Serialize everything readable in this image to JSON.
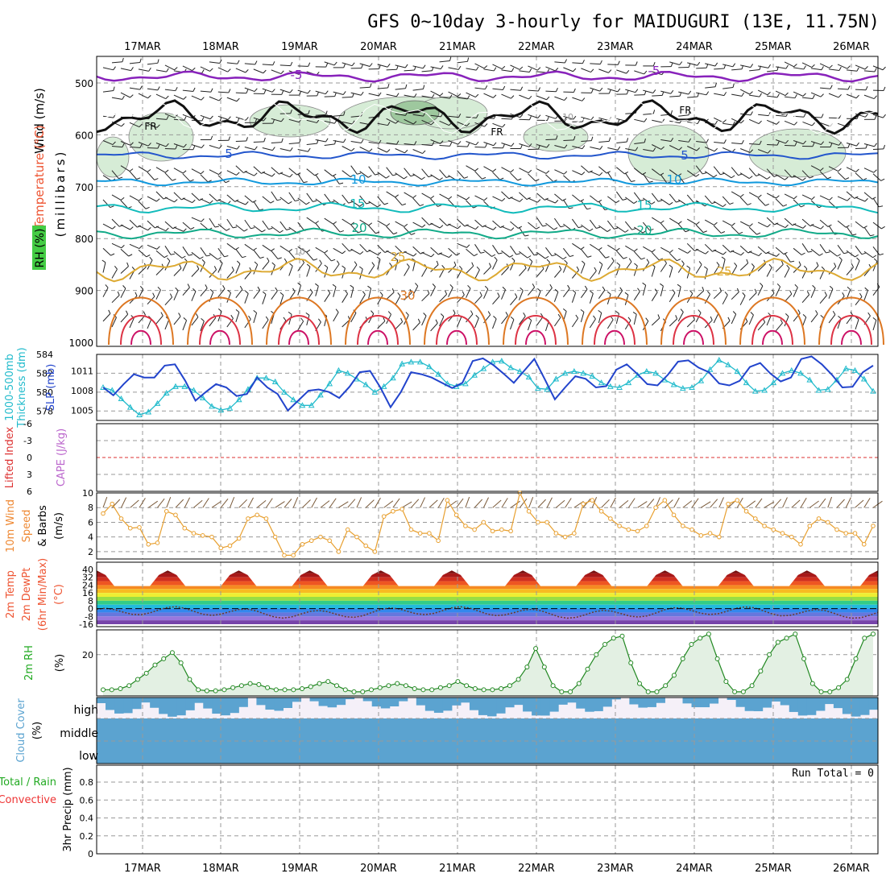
{
  "title": "GFS 0~10day 3-hourly for MAIDUGURI (13E, 11.75N)",
  "run_total": "Run Total = 0",
  "dates": [
    "17MAR",
    "18MAR",
    "19MAR",
    "20MAR",
    "21MAR",
    "22MAR",
    "23MAR",
    "24MAR",
    "25MAR",
    "26MAR"
  ],
  "panels": {
    "upper": {
      "ylabel_wind": "Wind (m/s)",
      "ylabel_temp": "Temperature (°C)",
      "ylabel_rh": "RH (%)",
      "ylabel_units": "(millibars)",
      "ticks": [
        "500",
        "600",
        "700",
        "800",
        "900",
        "1000"
      ],
      "temp_labels": [
        "-5",
        "-5",
        "5",
        "5",
        "10",
        "10",
        "15",
        "15",
        "20",
        "20",
        "25",
        "25",
        "30"
      ],
      "fr_label": "FR",
      "rh_label": "10"
    },
    "thickness": {
      "ylabel_left1": "1000-500mb",
      "ylabel_left2": "Thickness (dm)",
      "ylabel_right": "SLP (mb)",
      "ticks_left": [
        "578",
        "580",
        "582",
        "584"
      ],
      "ticks_right": [
        "1005",
        "1008",
        "1011"
      ]
    },
    "stability": {
      "ylabel_li": "Lifted Index",
      "ylabel_cape": "CAPE (J/kg)",
      "ticks": [
        "-6",
        "-3",
        "0",
        "3",
        "6"
      ]
    },
    "wind10m": {
      "ylabel1": "10m Wind",
      "ylabel2": "Speed",
      "ylabel3": "& Barbs",
      "ylabel4": "(m/s)",
      "ticks": [
        "2",
        "4",
        "6",
        "8",
        "10"
      ]
    },
    "temp2m": {
      "ylabel1": "2m Temp",
      "ylabel2": "2m DewPt",
      "ylabel3": "(6hr Min/Max)",
      "ylabel4": "(°C)",
      "ticks": [
        "40",
        "32",
        "24",
        "16",
        "8",
        "0",
        "-8",
        "-16"
      ]
    },
    "rh2m": {
      "ylabel1": "2m RH",
      "ylabel2": "(%)",
      "ticks": [
        "20"
      ]
    },
    "cloud": {
      "ylabel1": "Cloud Cover",
      "ylabel2": "(%)",
      "levels": [
        "high",
        "middle",
        "low"
      ]
    },
    "precip": {
      "ylabel1": "Total / Rain",
      "ylabel2": "Convective",
      "ylabel3": "3hr Precip (mm)",
      "ticks": [
        "0",
        "0.2",
        "0.4",
        "0.6",
        "0.8"
      ]
    }
  },
  "colors": {
    "thickness": "#22bbcc",
    "slp": "#2244cc",
    "wind10m": "#e8a030",
    "rh2m": "#228822",
    "cloud": "#5ba3d0",
    "li": "#dd3333",
    "cape": "#bb66cc",
    "temp_label": "#ee5533",
    "wind_label": "#ee8833",
    "precip_total": "#22aa22",
    "precip_conv": "#ee3333"
  },
  "chart_data": [
    {
      "type": "line",
      "name": "thickness",
      "ylim": [
        577,
        584
      ],
      "values": [
        580.5,
        580.2,
        579.3,
        578.4,
        577.6,
        577.9,
        578.8,
        579.9,
        580.6,
        580.6,
        580.2,
        579.4,
        578.5,
        578.1,
        578.3,
        579.2,
        580.3,
        581.5,
        581.5,
        581.1,
        580.0,
        579.2,
        578.6,
        578.6,
        579.7,
        580.9,
        582.3,
        582.0,
        581.4,
        580.8,
        580.0,
        580.6,
        581.5,
        583.0,
        583.2,
        583.2,
        582.7,
        581.9,
        580.9,
        580.6,
        580.9,
        581.8,
        582.5,
        583.2,
        583.3,
        582.6,
        582.2,
        581.6,
        580.4,
        580.3,
        581.4,
        582.0,
        582.2,
        582.0,
        581.7,
        581.0,
        580.6,
        580.5,
        581.0,
        581.8,
        582.2,
        582.0,
        581.3,
        580.8,
        580.4,
        580.5,
        581.2,
        582.4,
        583.4,
        582.9,
        582.2,
        581.0,
        580.1,
        580.2,
        581.0,
        582.0,
        582.3,
        582.0,
        581.3,
        580.2,
        580.3,
        581.3,
        582.5,
        582.3,
        581.4,
        580.1
      ]
    },
    {
      "type": "line",
      "name": "slp",
      "ylim": [
        1003.5,
        1013.5
      ],
      "values": [
        1008.5,
        1007.3,
        1009.0,
        1010.5,
        1010.0,
        1010.0,
        1011.8,
        1012.0,
        1009.5,
        1006.5,
        1007.8,
        1009.0,
        1008.5,
        1007.2,
        1007.5,
        1010.0,
        1008.5,
        1007.5,
        1005.0,
        1006.5,
        1008.0,
        1008.2,
        1007.8,
        1006.9,
        1008.6,
        1010.8,
        1011.0,
        1008.5,
        1005.5,
        1007.8,
        1010.8,
        1010.5,
        1010.0,
        1009.2,
        1008.4,
        1009.2,
        1012.5,
        1012.9,
        1011.9,
        1010.6,
        1009.2,
        1011.0,
        1012.8,
        1009.8,
        1006.7,
        1008.5,
        1010.2,
        1009.8,
        1008.5,
        1008.7,
        1011.2,
        1012.0,
        1010.6,
        1009.0,
        1008.8,
        1010.4,
        1012.4,
        1012.6,
        1011.5,
        1010.8,
        1009.1,
        1008.8,
        1009.5,
        1011.6,
        1012.2,
        1010.6,
        1009.4,
        1010.0,
        1012.8,
        1013.2,
        1012.0,
        1010.4,
        1008.5,
        1008.6,
        1010.8,
        1011.8
      ]
    },
    {
      "type": "line",
      "name": "wind10m_speed",
      "ylim": [
        1,
        10
      ],
      "values": [
        7.2,
        8.5,
        6.5,
        5.2,
        5.3,
        3.0,
        3.2,
        7.5,
        7.0,
        5.2,
        4.5,
        4.2,
        4.0,
        2.5,
        2.8,
        3.8,
        6.5,
        7.0,
        6.5,
        4.0,
        1.5,
        1.5,
        3.0,
        3.5,
        4.0,
        3.5,
        2.0,
        5.0,
        4.0,
        2.8,
        2.0,
        6.8,
        7.5,
        7.8,
        5.0,
        4.5,
        4.5,
        3.5,
        9.0,
        7.0,
        5.5,
        5.0,
        6.0,
        4.8,
        5.0,
        4.8,
        10.0,
        7.5,
        6.0,
        6.0,
        4.5,
        4.0,
        4.5,
        8.5,
        9.0,
        7.5,
        6.5,
        5.5,
        5.0,
        4.8,
        5.5,
        8.0,
        9.0,
        7.0,
        5.5,
        5.0,
        4.2,
        4.5,
        4.0,
        8.5,
        9.0,
        7.5,
        6.5,
        5.5,
        5.0,
        4.5,
        4.0,
        3.0,
        5.5,
        6.5,
        6.0,
        5.0,
        4.5,
        4.5,
        3.0,
        5.5
      ]
    },
    {
      "type": "line",
      "name": "rh2m",
      "ylim": [
        0,
        32
      ],
      "values": [
        3,
        3,
        3.5,
        5,
        8,
        11,
        15,
        18,
        21,
        16,
        8,
        3,
        2.5,
        2.5,
        3,
        4,
        5,
        6,
        5.5,
        4,
        3,
        3,
        3,
        3.5,
        4.5,
        6,
        7,
        5,
        3,
        2,
        2,
        3,
        4,
        5,
        6,
        5,
        3.5,
        3,
        3,
        4,
        5,
        7,
        5,
        3.5,
        3,
        3,
        3.5,
        5,
        8,
        14,
        23,
        14,
        5,
        2,
        2,
        6,
        13,
        20,
        25,
        28,
        29,
        16,
        6,
        2,
        2,
        5,
        10,
        18,
        25,
        28,
        30,
        18,
        7,
        2,
        2,
        5,
        12,
        20,
        26,
        28,
        30,
        18,
        6,
        2,
        2,
        4,
        8,
        18,
        28,
        30
      ]
    },
    {
      "type": "area",
      "name": "precip",
      "ylim": [
        0,
        0.9
      ],
      "values": []
    }
  ]
}
